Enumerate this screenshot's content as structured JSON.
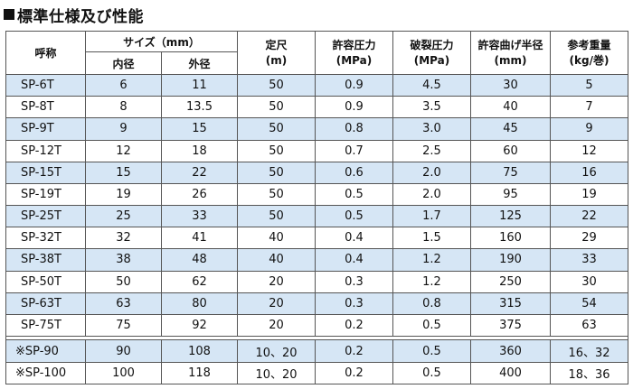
{
  "title": "標準仕様及び性能",
  "headers": {
    "name": "呼称",
    "size": "サイズ（mm）",
    "inner": "内径",
    "outer": "外径",
    "length": "定尺\n(m)",
    "pressure": "許容圧力\n(MPa)",
    "burst": "破裂圧力\n(MPa)",
    "bend": "許容曲げ半径\n(mm)",
    "weight": "参考重量\n(kg/巻)"
  },
  "rows": [
    {
      "name": "SP-6T",
      "inner": "6",
      "outer": "11",
      "length": "50",
      "pressure": "0.9",
      "burst": "4.5",
      "bend": "30",
      "weight": "5"
    },
    {
      "name": "SP-8T",
      "inner": "8",
      "outer": "13.5",
      "length": "50",
      "pressure": "0.9",
      "burst": "3.5",
      "bend": "40",
      "weight": "7"
    },
    {
      "name": "SP-9T",
      "inner": "9",
      "outer": "15",
      "length": "50",
      "pressure": "0.8",
      "burst": "3.0",
      "bend": "45",
      "weight": "9"
    },
    {
      "name": "SP-12T",
      "inner": "12",
      "outer": "18",
      "length": "50",
      "pressure": "0.7",
      "burst": "2.5",
      "bend": "60",
      "weight": "12"
    },
    {
      "name": "SP-15T",
      "inner": "15",
      "outer": "22",
      "length": "50",
      "pressure": "0.6",
      "burst": "2.0",
      "bend": "75",
      "weight": "16"
    },
    {
      "name": "SP-19T",
      "inner": "19",
      "outer": "26",
      "length": "50",
      "pressure": "0.5",
      "burst": "2.0",
      "bend": "95",
      "weight": "19"
    },
    {
      "name": "SP-25T",
      "inner": "25",
      "outer": "33",
      "length": "50",
      "pressure": "0.5",
      "burst": "1.7",
      "bend": "125",
      "weight": "22"
    },
    {
      "name": "SP-32T",
      "inner": "32",
      "outer": "41",
      "length": "40",
      "pressure": "0.4",
      "burst": "1.5",
      "bend": "160",
      "weight": "29"
    },
    {
      "name": "SP-38T",
      "inner": "38",
      "outer": "48",
      "length": "40",
      "pressure": "0.4",
      "burst": "1.2",
      "bend": "190",
      "weight": "33"
    },
    {
      "name": "SP-50T",
      "inner": "50",
      "outer": "62",
      "length": "20",
      "pressure": "0.3",
      "burst": "1.2",
      "bend": "250",
      "weight": "30"
    },
    {
      "name": "SP-63T",
      "inner": "63",
      "outer": "80",
      "length": "20",
      "pressure": "0.3",
      "burst": "0.8",
      "bend": "315",
      "weight": "54"
    },
    {
      "name": "SP-75T",
      "inner": "75",
      "outer": "92",
      "length": "20",
      "pressure": "0.2",
      "burst": "0.5",
      "bend": "375",
      "weight": "63"
    }
  ],
  "extra_rows": [
    {
      "name": "※SP-90",
      "inner": "90",
      "outer": "108",
      "length": "10、20",
      "pressure": "0.2",
      "burst": "0.5",
      "bend": "360",
      "weight": "16、32"
    },
    {
      "name": "※SP-100",
      "inner": "100",
      "outer": "118",
      "length": "10、20",
      "pressure": "0.2",
      "burst": "0.5",
      "bend": "400",
      "weight": "18、36"
    }
  ]
}
